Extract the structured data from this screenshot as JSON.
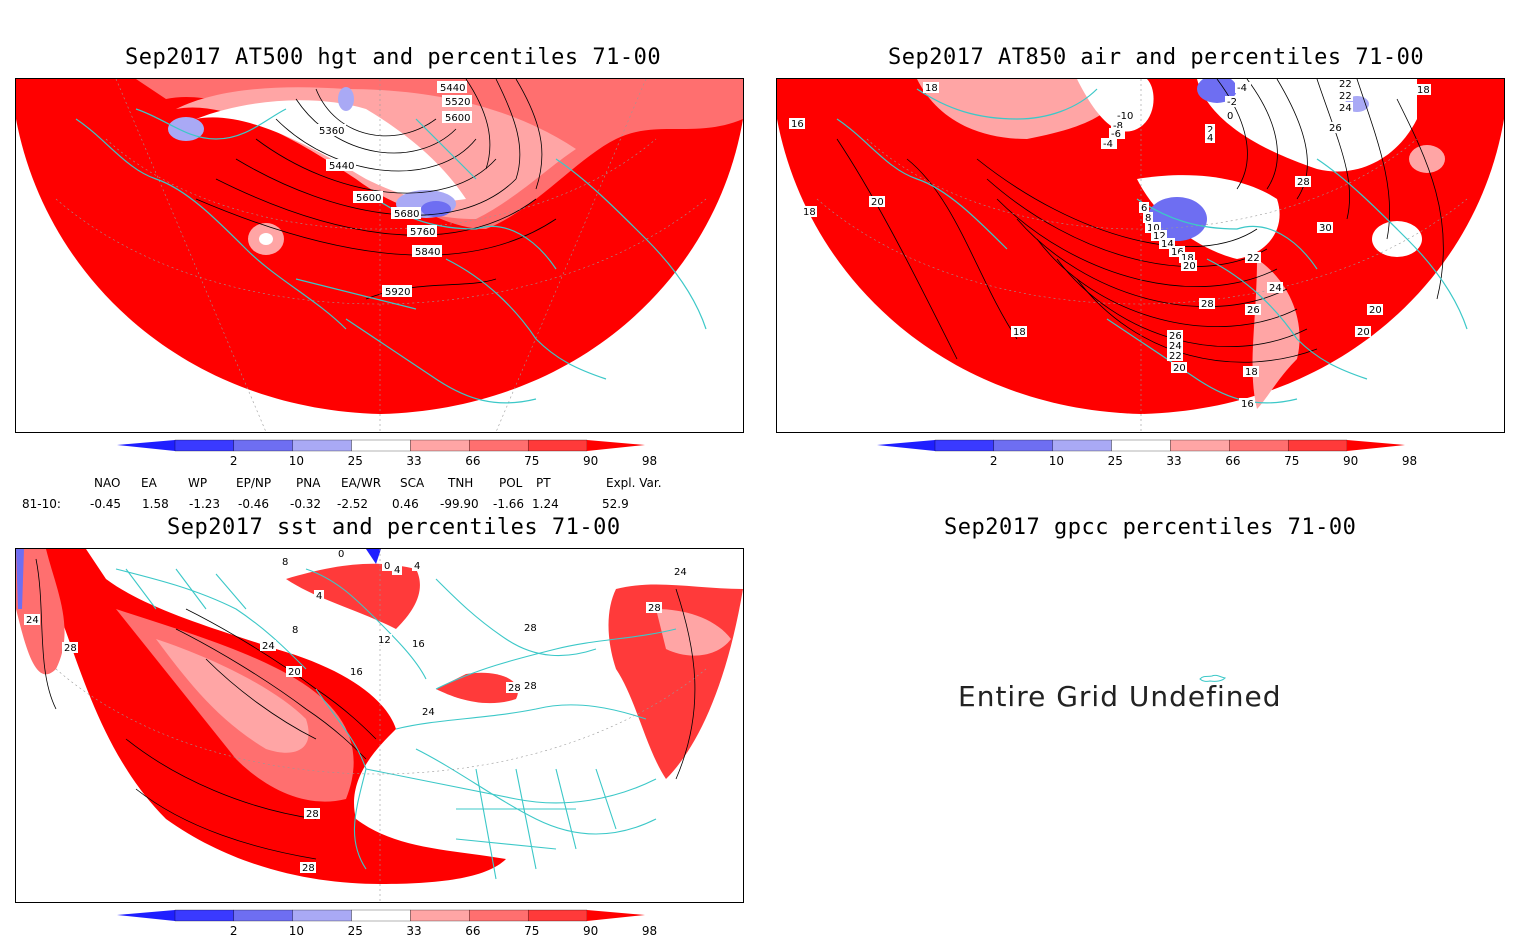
{
  "panels": {
    "hgt": {
      "title": "Sep2017 AT500 hgt and percentiles 71-00",
      "contour_labels": [
        "5440",
        "5520",
        "5600",
        "5360",
        "5440",
        "5600",
        "5680",
        "5760",
        "5840",
        "5920"
      ]
    },
    "air": {
      "title": "Sep2017 AT850 air and percentiles 71-00",
      "contour_labels": [
        "18",
        "-4",
        "-2",
        "0",
        "2",
        "4",
        "22",
        "22",
        "24",
        "26",
        "18",
        "16",
        "-10",
        "-8",
        "-6",
        "-4",
        "18",
        "20",
        "28",
        "30",
        "6",
        "8",
        "10",
        "12",
        "14",
        "16",
        "18",
        "20",
        "22",
        "24",
        "26",
        "28",
        "26",
        "24",
        "22",
        "20",
        "18",
        "20",
        "20",
        "18",
        "16"
      ]
    },
    "sst": {
      "title": "Sep2017 sst and percentiles 71-00",
      "contour_labels": [
        "0",
        "4",
        "8",
        "4",
        "0",
        "4",
        "8",
        "12",
        "16",
        "24",
        "20",
        "16",
        "24",
        "28",
        "28",
        "24",
        "28",
        "28",
        "28",
        "28",
        "24",
        "28"
      ]
    },
    "gpcc": {
      "title": "Sep2017 gpcc percentiles 71-00",
      "message": "Entire Grid Undefined"
    }
  },
  "colorbar": {
    "labels": [
      "2",
      "10",
      "25",
      "33",
      "66",
      "75",
      "90",
      "98"
    ],
    "colors": [
      "#1f1fff",
      "#3a3aff",
      "#6e6ef2",
      "#a9a9f5",
      "#ffffff",
      "#ffa5a5",
      "#ff6f6f",
      "#ff3a3a",
      "#ff0000"
    ]
  },
  "indices": {
    "headers": [
      "NAO",
      "EA",
      "WP",
      "EP/NP",
      "PNA",
      "EA/WR",
      "SCA",
      "TNH",
      "POL",
      "PT",
      "Expl. Var."
    ],
    "row_label": "81-10:",
    "values": [
      "-0.45",
      "1.58",
      "-1.23",
      "-0.46",
      "-0.32",
      "-2.52",
      "0.46",
      "-99.90",
      "-1.66",
      "1.24",
      "52.9"
    ]
  },
  "colors": {
    "coast": "#3cc8c8",
    "contour": "#000000",
    "fill_high": "#ff0000"
  }
}
